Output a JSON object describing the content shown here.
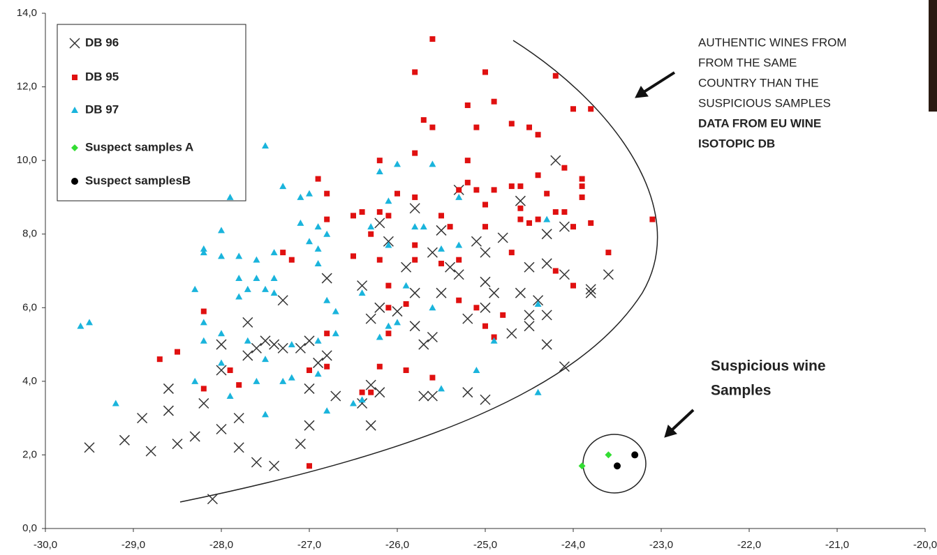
{
  "chart_data": {
    "type": "scatter",
    "xlim": [
      -30,
      -20
    ],
    "xticks": [
      {
        "value": -30,
        "label": "-30,0"
      },
      {
        "value": -29,
        "label": "-29,0"
      },
      {
        "value": -28,
        "label": "-28,0"
      },
      {
        "value": -27,
        "label": "-27,0"
      },
      {
        "value": -26,
        "label": "-26,0"
      },
      {
        "value": -25,
        "label": "-25,0"
      },
      {
        "value": -24,
        "label": "-24,0"
      },
      {
        "value": -23,
        "label": "-23,0"
      },
      {
        "value": -22,
        "label": "-22,0"
      },
      {
        "value": -21,
        "label": "-21,0"
      },
      {
        "value": -20,
        "label": "-20,0"
      }
    ],
    "ylim": [
      0,
      14
    ],
    "yticks": [
      {
        "value": 0,
        "label": "0,0"
      },
      {
        "value": 2,
        "label": "2,0"
      },
      {
        "value": 4,
        "label": "4,0"
      },
      {
        "value": 6,
        "label": "6,0"
      },
      {
        "value": 8,
        "label": "8,0"
      },
      {
        "value": 10,
        "label": "10,0"
      },
      {
        "value": 12,
        "label": "12,0"
      },
      {
        "value": 14,
        "label": "14,0"
      }
    ],
    "grid": false,
    "legend": "top-left",
    "series": [
      {
        "name": "DB 96",
        "marker": "x",
        "color": "#333333",
        "x": [
          -29.5,
          -29.1,
          -28.8,
          -28.9,
          -28.6,
          -28.6,
          -28.5,
          -28.3,
          -28.2,
          -28.0,
          -28.1,
          -28.0,
          -28.0,
          -27.8,
          -27.8,
          -27.7,
          -27.7,
          -27.6,
          -27.6,
          -27.5,
          -27.4,
          -27.4,
          -27.3,
          -27.3,
          -27.1,
          -27.1,
          -27.0,
          -27.0,
          -27.0,
          -26.9,
          -26.8,
          -26.8,
          -26.7,
          -26.4,
          -26.4,
          -26.3,
          -26.3,
          -26.3,
          -26.2,
          -26.2,
          -26.2,
          -26.1,
          -26.0,
          -25.9,
          -25.8,
          -25.8,
          -25.8,
          -25.7,
          -25.7,
          -25.6,
          -25.6,
          -25.6,
          -25.5,
          -25.5,
          -25.4,
          -25.3,
          -25.3,
          -25.2,
          -25.2,
          -25.1,
          -25.0,
          -25.0,
          -25.0,
          -25.0,
          -24.9,
          -24.8,
          -24.7,
          -24.6,
          -24.6,
          -24.5,
          -24.5,
          -24.5,
          -24.4,
          -24.3,
          -24.3,
          -24.3,
          -24.2,
          -24.1,
          -24.1,
          -24.1,
          -23.8,
          -23.8,
          -23.6,
          -24.3
        ],
        "values": [
          2.2,
          2.4,
          2.1,
          3.0,
          3.2,
          3.8,
          2.3,
          2.5,
          3.4,
          2.7,
          0.8,
          4.3,
          5.0,
          2.2,
          3.0,
          4.7,
          5.6,
          1.8,
          4.9,
          5.1,
          1.7,
          5.0,
          4.9,
          6.2,
          2.3,
          4.9,
          5.1,
          3.8,
          2.8,
          4.5,
          4.7,
          6.8,
          3.6,
          3.4,
          6.6,
          2.8,
          3.9,
          5.7,
          3.7,
          6.0,
          8.3,
          7.8,
          5.9,
          7.1,
          5.5,
          6.4,
          8.7,
          5.0,
          3.6,
          3.6,
          5.2,
          7.5,
          6.4,
          8.1,
          7.1,
          6.9,
          9.2,
          5.7,
          3.7,
          7.8,
          6.0,
          6.7,
          3.5,
          7.5,
          6.4,
          7.9,
          5.3,
          6.4,
          8.9,
          5.5,
          5.8,
          7.1,
          6.2,
          5.0,
          7.2,
          8.0,
          10.0,
          8.2,
          6.9,
          4.4,
          6.4,
          6.5,
          6.9,
          5.8
        ]
      },
      {
        "name": "DB 95",
        "marker": "square",
        "color": "#e01010",
        "x": [
          -28.7,
          -28.5,
          -28.2,
          -28.2,
          -27.9,
          -27.8,
          -27.3,
          -27.2,
          -27.0,
          -27.0,
          -26.9,
          -26.8,
          -26.8,
          -26.8,
          -26.8,
          -26.5,
          -26.5,
          -26.4,
          -26.4,
          -26.3,
          -26.3,
          -26.2,
          -26.2,
          -26.2,
          -26.2,
          -26.1,
          -26.1,
          -26.1,
          -26.1,
          -26.0,
          -25.9,
          -25.9,
          -25.8,
          -25.8,
          -25.8,
          -25.8,
          -25.8,
          -25.7,
          -25.6,
          -25.6,
          -25.6,
          -25.5,
          -25.5,
          -25.4,
          -25.3,
          -25.3,
          -25.3,
          -25.2,
          -25.2,
          -25.2,
          -25.1,
          -25.1,
          -25.1,
          -25.0,
          -25.0,
          -25.0,
          -25.0,
          -24.9,
          -24.9,
          -24.9,
          -24.8,
          -24.7,
          -24.7,
          -24.7,
          -24.6,
          -24.6,
          -24.6,
          -24.5,
          -24.5,
          -24.4,
          -24.4,
          -24.4,
          -24.3,
          -24.2,
          -24.2,
          -24.2,
          -24.1,
          -24.1,
          -24.0,
          -24.0,
          -24.0,
          -23.9,
          -23.9,
          -23.9,
          -23.8,
          -23.8,
          -23.6,
          -23.1
        ],
        "values": [
          4.6,
          4.8,
          5.9,
          3.8,
          4.3,
          3.9,
          7.5,
          7.3,
          4.3,
          1.7,
          9.5,
          9.1,
          8.4,
          5.3,
          4.4,
          8.5,
          7.4,
          8.6,
          3.7,
          3.7,
          8.0,
          10.0,
          8.6,
          7.3,
          4.4,
          6.6,
          8.5,
          5.3,
          6.0,
          9.1,
          6.1,
          4.3,
          12.4,
          10.2,
          9.0,
          7.3,
          7.7,
          11.1,
          13.3,
          10.9,
          4.1,
          7.2,
          8.5,
          8.2,
          9.2,
          7.3,
          6.2,
          11.5,
          10.0,
          9.4,
          10.9,
          9.2,
          6.0,
          12.4,
          8.8,
          8.2,
          5.5,
          11.6,
          9.2,
          5.2,
          5.8,
          11.0,
          9.3,
          7.5,
          9.3,
          8.7,
          8.4,
          10.9,
          8.3,
          10.7,
          9.6,
          8.4,
          9.1,
          12.3,
          8.6,
          7.0,
          9.8,
          8.6,
          11.4,
          8.2,
          6.6,
          9.5,
          9.3,
          9.0,
          11.4,
          8.3,
          7.5,
          8.4
        ]
      },
      {
        "name": "DB 97",
        "marker": "triangle",
        "color": "#1ab4dc",
        "x": [
          -29.6,
          -29.5,
          -29.2,
          -28.3,
          -28.3,
          -28.2,
          -28.2,
          -28.2,
          -28.2,
          -28.0,
          -28.0,
          -28.0,
          -28.0,
          -27.9,
          -27.9,
          -27.8,
          -27.8,
          -27.8,
          -27.7,
          -27.7,
          -27.6,
          -27.6,
          -27.6,
          -27.5,
          -27.5,
          -27.5,
          -27.5,
          -27.4,
          -27.4,
          -27.4,
          -27.3,
          -27.3,
          -27.2,
          -27.2,
          -27.1,
          -27.1,
          -27.0,
          -27.0,
          -26.9,
          -26.9,
          -26.9,
          -26.9,
          -26.9,
          -26.8,
          -26.8,
          -26.8,
          -26.7,
          -26.7,
          -26.5,
          -26.4,
          -26.4,
          -26.3,
          -26.2,
          -26.2,
          -26.1,
          -26.1,
          -26.1,
          -26.0,
          -26.0,
          -25.9,
          -25.8,
          -25.7,
          -25.6,
          -25.6,
          -25.5,
          -25.5,
          -25.3,
          -25.3,
          -25.1,
          -24.9,
          -24.4,
          -24.4,
          -24.3
        ],
        "values": [
          5.5,
          5.6,
          3.4,
          4.0,
          6.5,
          5.1,
          5.6,
          7.6,
          7.5,
          4.5,
          5.3,
          7.4,
          8.1,
          9.0,
          3.6,
          6.3,
          6.8,
          7.4,
          5.1,
          6.5,
          4.0,
          6.8,
          7.3,
          3.1,
          4.6,
          6.5,
          10.4,
          6.4,
          6.8,
          7.5,
          4.0,
          9.3,
          4.1,
          5.0,
          8.3,
          9.0,
          7.8,
          9.1,
          4.2,
          5.1,
          7.2,
          7.6,
          8.2,
          3.2,
          6.2,
          8.0,
          5.3,
          5.9,
          3.4,
          3.5,
          6.4,
          8.2,
          5.2,
          9.7,
          5.5,
          7.7,
          8.9,
          5.6,
          9.9,
          6.6,
          8.2,
          8.2,
          6.0,
          9.9,
          3.8,
          7.6,
          7.7,
          9.0,
          4.3,
          5.1,
          6.1,
          3.7,
          8.4
        ]
      },
      {
        "name": "Suspect samples A",
        "marker": "diamond",
        "color": "#33dd33",
        "x": [
          -23.9,
          -23.6
        ],
        "values": [
          1.7,
          2.0
        ]
      },
      {
        "name": "Suspect samplesB",
        "marker": "circle",
        "color": "#000000",
        "x": [
          -23.5,
          -23.3
        ],
        "values": [
          1.7,
          2.0
        ]
      }
    ],
    "annotations": [
      {
        "lines": [
          "AUTHENTIC WINES FROM",
          "FROM THE SAME",
          "COUNTRY THAN THE",
          "SUSPICIOUS SAMPLES"
        ],
        "bold_lines": [
          "DATA FROM EU WINE",
          "ISOTOPIC DB"
        ]
      },
      {
        "bold_lines": [
          "Suspicious wine",
          "Samples"
        ]
      }
    ]
  }
}
